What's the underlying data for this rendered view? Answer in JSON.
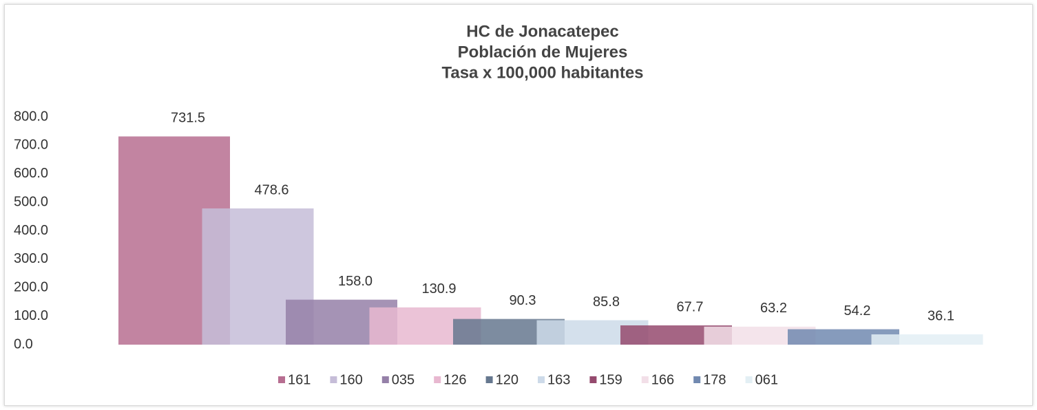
{
  "chart_data": {
    "type": "bar",
    "title": [
      "HC de Jonacatepec",
      "Población de Mujeres",
      "Tasa x 100,000 habitantes"
    ],
    "ylim": [
      0,
      800
    ],
    "yticks": [
      {
        "value": 0,
        "label": "0.0"
      },
      {
        "value": 100,
        "label": "100.0"
      },
      {
        "value": 200,
        "label": "200.0"
      },
      {
        "value": 300,
        "label": "300.0"
      },
      {
        "value": 400,
        "label": "400.0"
      },
      {
        "value": 500,
        "label": "500.0"
      },
      {
        "value": 600,
        "label": "600.0"
      },
      {
        "value": 700,
        "label": "700.0"
      },
      {
        "value": 800,
        "label": "800.0"
      }
    ],
    "grid": false,
    "legend": "bottom",
    "series": [
      {
        "name": "161",
        "color": "#b76e91",
        "values": [
          731.5
        ],
        "value_labels": [
          "731.5"
        ]
      },
      {
        "name": "160",
        "color": "#c6bdd8",
        "values": [
          478.6
        ],
        "value_labels": [
          "478.6"
        ]
      },
      {
        "name": "035",
        "color": "#9580a8",
        "values": [
          158.0
        ],
        "value_labels": [
          "158.0"
        ]
      },
      {
        "name": "126",
        "color": "#e8b8d0",
        "values": [
          130.9
        ],
        "value_labels": [
          "130.9"
        ]
      },
      {
        "name": "120",
        "color": "#66788f",
        "values": [
          90.3
        ],
        "value_labels": [
          "90.3"
        ]
      },
      {
        "name": "163",
        "color": "#cddae9",
        "values": [
          85.8
        ],
        "value_labels": [
          "85.8"
        ]
      },
      {
        "name": "159",
        "color": "#954a6e",
        "values": [
          67.7
        ],
        "value_labels": [
          "67.7"
        ]
      },
      {
        "name": "166",
        "color": "#f2dfe8",
        "values": [
          63.2
        ],
        "value_labels": [
          "63.2"
        ]
      },
      {
        "name": "178",
        "color": "#7189b0",
        "values": [
          54.2
        ],
        "value_labels": [
          "54.2"
        ]
      },
      {
        "name": "061",
        "color": "#e3eff4",
        "values": [
          36.1
        ],
        "value_labels": [
          "36.1"
        ]
      }
    ]
  }
}
